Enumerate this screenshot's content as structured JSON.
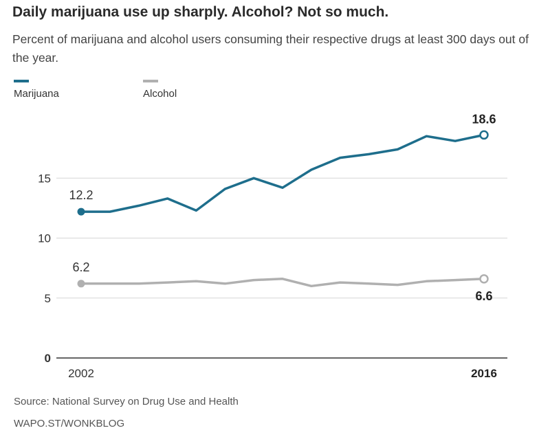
{
  "title": "Daily marijuana use up sharply. Alcohol? Not so much.",
  "subtitle": "Percent of marijuana and alcohol users consuming their respective drugs at least 300 days out of the year.",
  "source": "Source: National Survey on Drug Use and Health",
  "credit": "WAPO.ST/WONKBLOG",
  "colors": {
    "marijuana": "#1e6e8c",
    "alcohol": "#b0b0b0",
    "grid": "#d6d6d6",
    "axis": "#333333"
  },
  "chart_data": {
    "type": "line",
    "title": "Daily marijuana use up sharply. Alcohol? Not so much.",
    "xlabel": "",
    "ylabel": "",
    "x": [
      2002,
      2003,
      2004,
      2005,
      2006,
      2007,
      2008,
      2009,
      2010,
      2011,
      2012,
      2013,
      2014,
      2015,
      2016
    ],
    "ylim": [
      0,
      20
    ],
    "yticks": [
      0,
      5,
      10,
      15
    ],
    "ytick_labels": [
      "0",
      "5",
      "10",
      "15"
    ],
    "xtick_labels": [
      "2002",
      "2016"
    ],
    "series": [
      {
        "name": "Marijuana",
        "color": "#1e6e8c",
        "values": [
          12.2,
          12.2,
          12.7,
          13.3,
          12.3,
          14.1,
          15.0,
          14.2,
          15.7,
          16.7,
          17.0,
          17.4,
          18.5,
          18.1,
          18.6
        ],
        "start_label": "12.2",
        "end_label": "18.6"
      },
      {
        "name": "Alcohol",
        "color": "#b0b0b0",
        "values": [
          6.2,
          6.2,
          6.2,
          6.3,
          6.4,
          6.2,
          6.5,
          6.6,
          6.0,
          6.3,
          6.2,
          6.1,
          6.4,
          6.5,
          6.6
        ],
        "start_label": "6.2",
        "end_label": "6.6"
      }
    ]
  }
}
